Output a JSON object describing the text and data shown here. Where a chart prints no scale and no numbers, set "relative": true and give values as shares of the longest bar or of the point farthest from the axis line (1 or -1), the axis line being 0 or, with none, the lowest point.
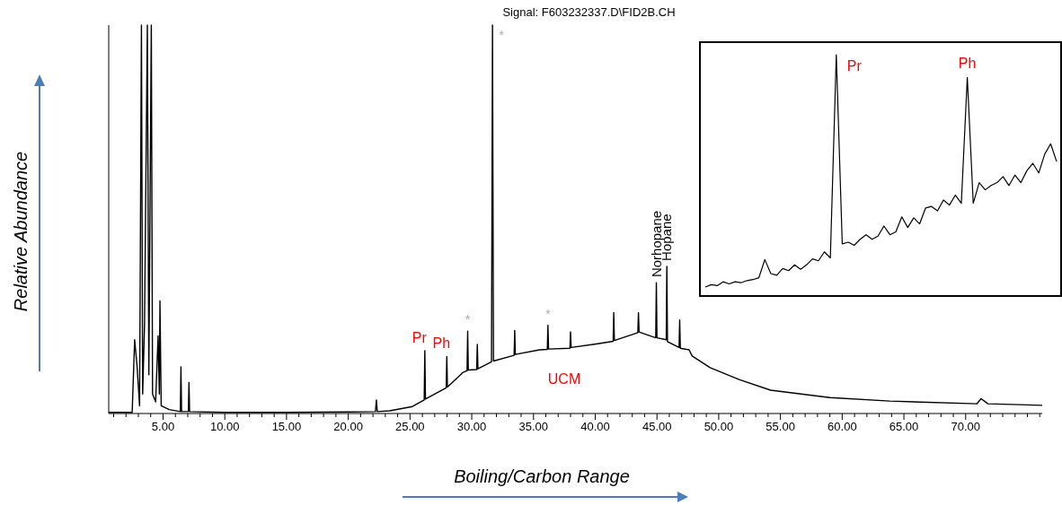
{
  "chart_data": [
    {
      "type": "line",
      "title": "Signal: F603232337.D\\FID2B.CH",
      "xlabel": "Boiling/Carbon Range",
      "ylabel": "Relative Abundance",
      "relative": true,
      "xlim": [
        0.6,
        76.2
      ],
      "xticks": [
        {
          "value": 1,
          "label": null
        },
        {
          "value": 2,
          "label": null
        },
        {
          "value": 3,
          "label": null
        },
        {
          "value": 4,
          "label": null
        },
        {
          "value": 5,
          "label": "5.00"
        },
        {
          "value": 6,
          "label": null
        },
        {
          "value": 7,
          "label": null
        },
        {
          "value": 8,
          "label": null
        },
        {
          "value": 9,
          "label": null
        },
        {
          "value": 10,
          "label": "10.00"
        },
        {
          "value": 11,
          "label": null
        },
        {
          "value": 12,
          "label": null
        },
        {
          "value": 13,
          "label": null
        },
        {
          "value": 14,
          "label": null
        },
        {
          "value": 15,
          "label": "15.00"
        },
        {
          "value": 16,
          "label": null
        },
        {
          "value": 17,
          "label": null
        },
        {
          "value": 18,
          "label": null
        },
        {
          "value": 19,
          "label": null
        },
        {
          "value": 20,
          "label": "20.00"
        },
        {
          "value": 21,
          "label": null
        },
        {
          "value": 22,
          "label": null
        },
        {
          "value": 23,
          "label": null
        },
        {
          "value": 24,
          "label": null
        },
        {
          "value": 25,
          "label": "25.00"
        },
        {
          "value": 26,
          "label": null
        },
        {
          "value": 27,
          "label": null
        },
        {
          "value": 28,
          "label": null
        },
        {
          "value": 29,
          "label": null
        },
        {
          "value": 30,
          "label": "30.00"
        },
        {
          "value": 31,
          "label": null
        },
        {
          "value": 32,
          "label": null
        },
        {
          "value": 33,
          "label": null
        },
        {
          "value": 34,
          "label": null
        },
        {
          "value": 35,
          "label": "35.00"
        },
        {
          "value": 36,
          "label": null
        },
        {
          "value": 37,
          "label": null
        },
        {
          "value": 38,
          "label": null
        },
        {
          "value": 39,
          "label": null
        },
        {
          "value": 40,
          "label": "40.00"
        },
        {
          "value": 41,
          "label": null
        },
        {
          "value": 42,
          "label": null
        },
        {
          "value": 43,
          "label": null
        },
        {
          "value": 44,
          "label": null
        },
        {
          "value": 45,
          "label": "45.00"
        },
        {
          "value": 46,
          "label": null
        },
        {
          "value": 47,
          "label": null
        },
        {
          "value": 48,
          "label": null
        },
        {
          "value": 49,
          "label": null
        },
        {
          "value": 50,
          "label": "50.00"
        },
        {
          "value": 51,
          "label": null
        },
        {
          "value": 52,
          "label": null
        },
        {
          "value": 53,
          "label": null
        },
        {
          "value": 54,
          "label": null
        },
        {
          "value": 55,
          "label": "55.00"
        },
        {
          "value": 56,
          "label": null
        },
        {
          "value": 57,
          "label": null
        },
        {
          "value": 58,
          "label": null
        },
        {
          "value": 59,
          "label": null
        },
        {
          "value": 60,
          "label": "60.00"
        },
        {
          "value": 61,
          "label": null
        },
        {
          "value": 62,
          "label": null
        },
        {
          "value": 63,
          "label": null
        },
        {
          "value": 64,
          "label": null
        },
        {
          "value": 65,
          "label": "65.00"
        },
        {
          "value": 66,
          "label": null
        },
        {
          "value": 67,
          "label": null
        },
        {
          "value": 68,
          "label": null
        },
        {
          "value": 69,
          "label": null
        },
        {
          "value": 70,
          "label": "70.00"
        },
        {
          "value": 71,
          "label": null
        },
        {
          "value": 72,
          "label": null
        },
        {
          "value": 73,
          "label": null
        },
        {
          "value": 74,
          "label": null
        },
        {
          "value": 75,
          "label": null
        },
        {
          "value": 76,
          "label": null
        }
      ],
      "x": [
        0.6,
        2.5,
        2.7,
        2.9,
        3.1,
        3.25,
        3.35,
        3.5,
        3.73,
        3.85,
        4.05,
        4.15,
        4.4,
        4.6,
        4.7,
        4.75,
        4.85,
        5.5,
        6.4,
        6.45,
        6.5,
        7.05,
        7.1,
        7.15,
        10,
        15,
        20,
        22.2,
        22.28,
        22.35,
        23.35,
        25.2,
        26.15,
        26.2,
        26.25,
        27.93,
        27.98,
        28.03,
        29.3,
        29.62,
        29.67,
        29.72,
        30.4,
        30.45,
        30.5,
        31.6,
        31.68,
        31.76,
        33.43,
        33.48,
        33.53,
        35.5,
        36.12,
        36.17,
        36.22,
        37.95,
        38.0,
        38.05,
        40.07,
        41.45,
        41.5,
        41.55,
        43.45,
        43.5,
        43.55,
        44.9,
        44.95,
        45.0,
        45.75,
        45.8,
        45.85,
        46.79,
        46.84,
        46.89,
        47.6,
        47.85,
        49.3,
        51.7,
        54.2,
        59.0,
        63.85,
        70.9,
        71.25,
        71.8,
        76.2
      ],
      "series": [
        {
          "color": "#000000",
          "values": [
            0.003,
            0.003,
            0.19,
            0.12,
            0.02,
            1,
            0.05,
            0.23,
            1,
            0.1,
            1,
            0.05,
            0.03,
            0.2,
            0.05,
            0.29,
            0.02,
            0.01,
            0.005,
            0.12,
            0.005,
            0.005,
            0.08,
            0.005,
            0.003,
            0.003,
            0.004,
            0.005,
            0.035,
            0.005,
            0.007,
            0.018,
            0.035,
            0.162,
            0.037,
            0.066,
            0.147,
            0.068,
            0.106,
            0.11,
            0.212,
            0.112,
            0.113,
            0.178,
            0.115,
            0.133,
            1,
            0.135,
            0.15,
            0.214,
            0.152,
            0.164,
            0.165,
            0.227,
            0.166,
            0.168,
            0.21,
            0.17,
            0.179,
            0.186,
            0.26,
            0.188,
            0.208,
            0.26,
            0.21,
            0.195,
            0.337,
            0.195,
            0.19,
            0.379,
            0.185,
            0.17,
            0.241,
            0.168,
            0.164,
            0.148,
            0.118,
            0.087,
            0.06,
            0.041,
            0.032,
            0.025,
            0.038,
            0.025,
            0.021
          ]
        }
      ],
      "annotations": [
        {
          "text": "Pr",
          "x": 26.2,
          "y": 0.162
        },
        {
          "text": "Ph",
          "x": 27.98,
          "y": 0.147
        },
        {
          "text": "*",
          "x": 29.67,
          "y": 0.212
        },
        {
          "text": "*",
          "x": 31.68,
          "y": 1
        },
        {
          "text": "*",
          "x": 36.17,
          "y": 0.227
        },
        "UCM",
        {
          "text": "Norhopane",
          "x": 44.95,
          "y": 0.337
        },
        {
          "text": "Hopane",
          "x": 45.8,
          "y": 0.379
        }
      ]
    },
    {
      "type": "line",
      "relative": true,
      "categories": [
        null,
        null,
        null,
        null,
        null,
        null,
        null,
        null,
        null,
        null,
        null,
        null,
        null,
        null,
        null,
        null,
        null,
        null,
        null,
        null,
        null,
        null,
        null,
        null,
        null,
        null,
        null,
        null,
        null,
        null,
        null,
        null,
        null,
        null,
        null,
        null,
        null,
        null,
        null,
        null,
        null,
        null,
        null,
        null,
        null,
        null,
        null,
        null,
        null,
        null,
        null,
        null,
        null,
        null,
        null,
        null,
        null,
        null,
        null,
        null
      ],
      "series": [
        {
          "color": "#000000",
          "values": [
            0.037,
            0.047,
            0.043,
            0.059,
            0.05,
            0.059,
            0.055,
            0.064,
            0.068,
            0.076,
            0.151,
            0.093,
            0.086,
            0.114,
            0.105,
            0.129,
            0.111,
            0.129,
            0.154,
            0.146,
            0.183,
            0.158,
            1,
            0.216,
            0.223,
            0.21,
            0.235,
            0.254,
            0.235,
            0.248,
            0.29,
            0.254,
            0.266,
            0.328,
            0.284,
            0.324,
            0.299,
            0.365,
            0.371,
            0.353,
            0.398,
            0.377,
            0.418,
            0.384,
            0.906,
            0.384,
            0.47,
            0.44,
            0.458,
            0.47,
            0.495,
            0.458,
            0.501,
            0.47,
            0.519,
            0.55,
            0.51,
            0.588,
            0.631,
            0.557
          ]
        }
      ],
      "annotations": [
        "Pr",
        "Ph"
      ]
    }
  ]
}
